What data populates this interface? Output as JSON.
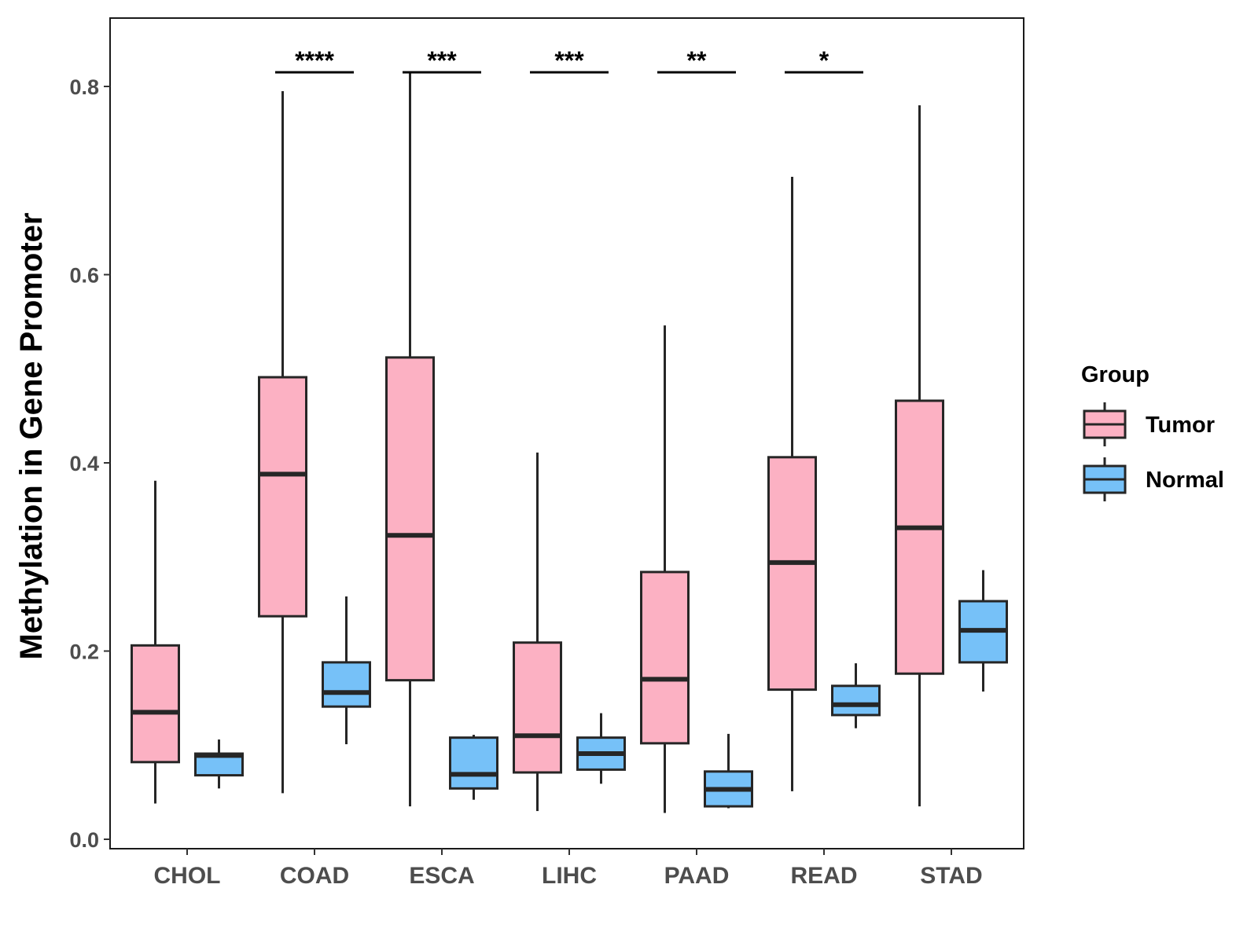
{
  "chart_data": {
    "type": "boxplot",
    "title": "",
    "xlabel": "",
    "ylabel": "Methylation in Gene Promoter",
    "ylim": [
      -0.01,
      0.87
    ],
    "yticks": [
      0.0,
      0.2,
      0.4,
      0.6,
      0.8
    ],
    "ytick_labels": [
      "0.0",
      "0.2",
      "0.4",
      "0.6",
      "0.8"
    ],
    "categories": [
      "CHOL",
      "COAD",
      "ESCA",
      "LIHC",
      "PAAD",
      "READ",
      "STAD"
    ],
    "legend": {
      "title": "Group",
      "position": "right",
      "entries": [
        {
          "name": "Tumor",
          "color": "#fcb1c3"
        },
        {
          "name": "Normal",
          "color": "#76c1f8"
        }
      ]
    },
    "series": [
      {
        "name": "Tumor",
        "color": "#fcb1c3",
        "boxes": [
          {
            "min": 0.038,
            "q1": 0.082,
            "median": 0.135,
            "q3": 0.206,
            "max": 0.381
          },
          {
            "min": 0.049,
            "q1": 0.237,
            "median": 0.388,
            "q3": 0.491,
            "max": 0.795
          },
          {
            "min": 0.035,
            "q1": 0.169,
            "median": 0.323,
            "q3": 0.512,
            "max": 0.815
          },
          {
            "min": 0.03,
            "q1": 0.071,
            "median": 0.11,
            "q3": 0.209,
            "max": 0.411
          },
          {
            "min": 0.028,
            "q1": 0.102,
            "median": 0.17,
            "q3": 0.284,
            "max": 0.546
          },
          {
            "min": 0.051,
            "q1": 0.159,
            "median": 0.294,
            "q3": 0.406,
            "max": 0.704
          },
          {
            "min": 0.035,
            "q1": 0.176,
            "median": 0.331,
            "q3": 0.466,
            "max": 0.78
          }
        ]
      },
      {
        "name": "Normal",
        "color": "#76c1f8",
        "boxes": [
          {
            "min": 0.054,
            "q1": 0.068,
            "median": 0.089,
            "q3": 0.091,
            "max": 0.106
          },
          {
            "min": 0.101,
            "q1": 0.141,
            "median": 0.156,
            "q3": 0.188,
            "max": 0.258
          },
          {
            "min": 0.042,
            "q1": 0.054,
            "median": 0.069,
            "q3": 0.108,
            "max": 0.111
          },
          {
            "min": 0.059,
            "q1": 0.074,
            "median": 0.091,
            "q3": 0.108,
            "max": 0.134
          },
          {
            "min": 0.033,
            "q1": 0.035,
            "median": 0.053,
            "q3": 0.072,
            "max": 0.112
          },
          {
            "min": 0.118,
            "q1": 0.132,
            "median": 0.143,
            "q3": 0.163,
            "max": 0.187
          },
          {
            "min": 0.157,
            "q1": 0.188,
            "median": 0.222,
            "q3": 0.253,
            "max": 0.286
          }
        ]
      }
    ],
    "significance": [
      {
        "category": "CHOL",
        "label": ""
      },
      {
        "category": "COAD",
        "label": "****"
      },
      {
        "category": "ESCA",
        "label": "***"
      },
      {
        "category": "LIHC",
        "label": "***"
      },
      {
        "category": "PAAD",
        "label": "**"
      },
      {
        "category": "READ",
        "label": "*"
      },
      {
        "category": "STAD",
        "label": ""
      }
    ],
    "significance_bar_y": 0.815,
    "grid": false
  }
}
